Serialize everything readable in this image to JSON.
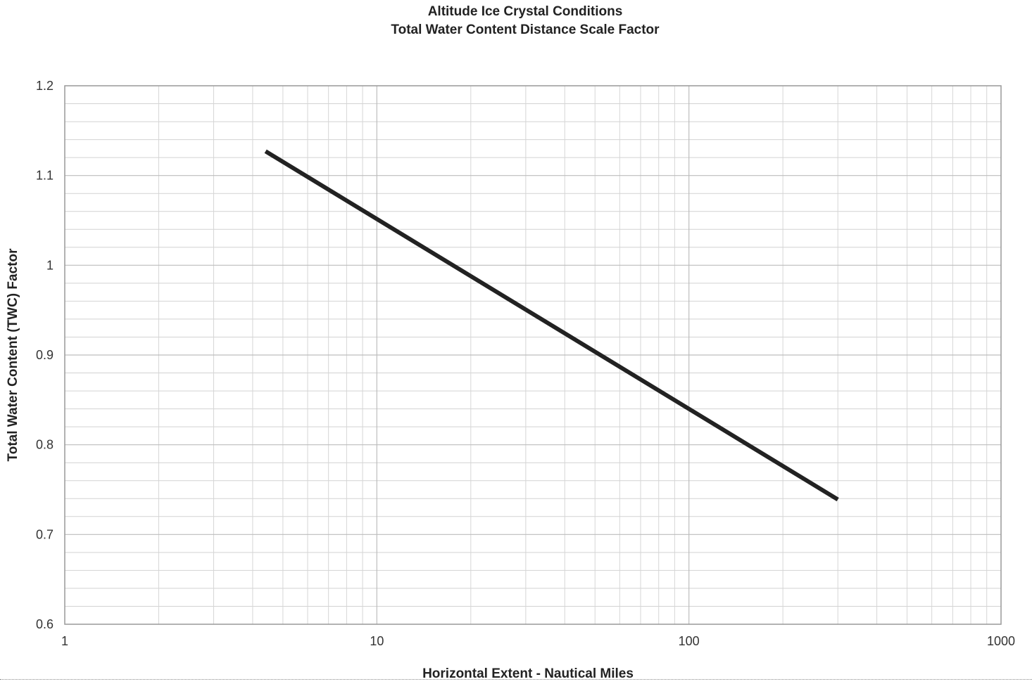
{
  "chart_data": {
    "type": "line",
    "title": "Altitude Ice Crystal Conditions",
    "subtitle": "Total Water Content Distance Scale Factor",
    "xlabel": "Horizontal Extent - Nautical Miles",
    "ylabel": "Total Water Content (TWC) Factor",
    "x_scale": "log",
    "xlim": [
      1,
      1000
    ],
    "ylim": [
      0.6,
      1.2
    ],
    "x_ticks": [
      "1",
      "10",
      "100",
      "1000"
    ],
    "y_ticks": [
      "0.6",
      "0.7",
      "0.8",
      "0.9",
      "1",
      "1.1",
      "1.2"
    ],
    "grid": true,
    "series": [
      {
        "x": [
          4.4,
          300
        ],
        "y": [
          1.127,
          0.739
        ],
        "color": "#222222"
      }
    ]
  }
}
